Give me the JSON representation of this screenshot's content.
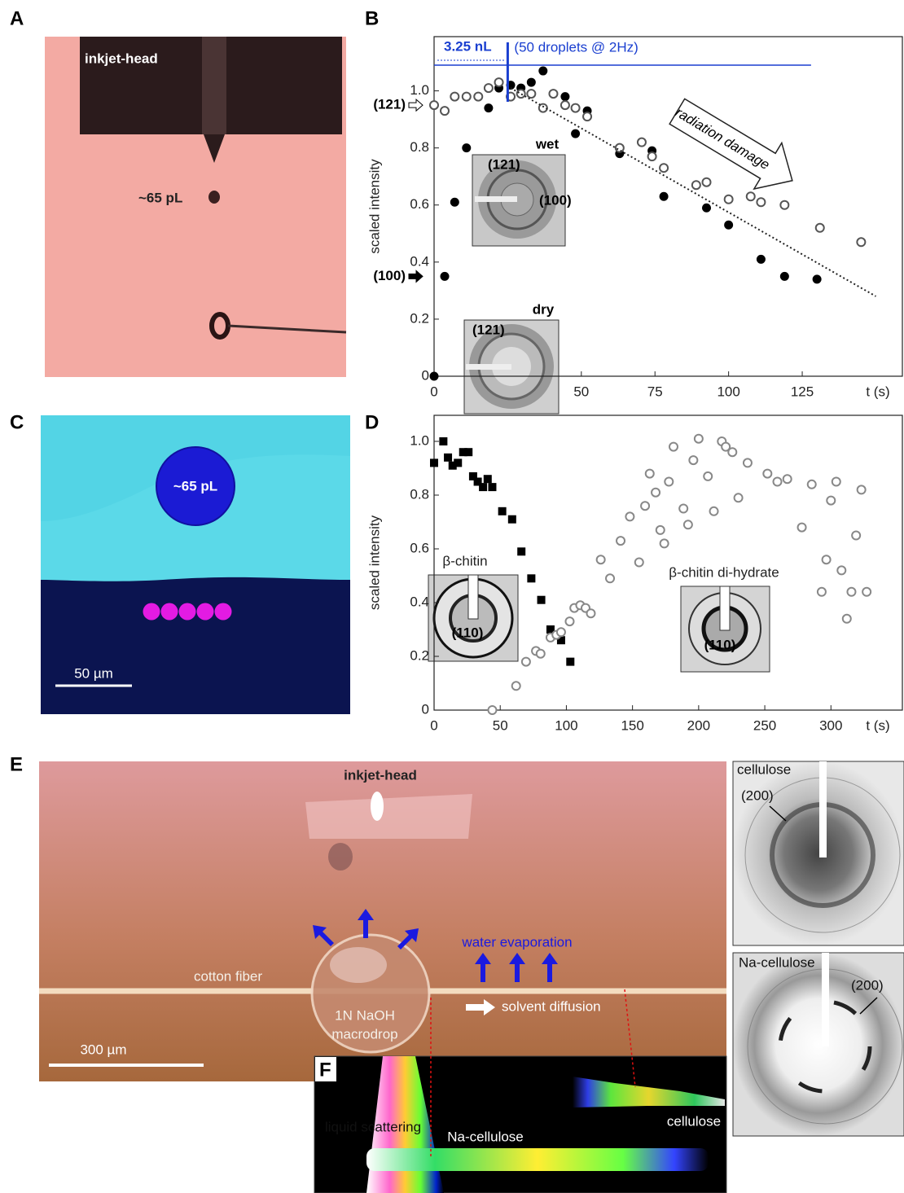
{
  "panel_labels": [
    "A",
    "B",
    "C",
    "D",
    "E",
    "F"
  ],
  "panel_a": {
    "head_label": "inkjet-head",
    "droplet_label": "~65 pL"
  },
  "panel_c": {
    "droplet_label": "~65 pL",
    "scale_bar": "50 µm"
  },
  "chart_data": [
    {
      "type": "scatter",
      "ylabel": "scaled intensity",
      "xlabel": "t (s)",
      "xlim": [
        0,
        159
      ],
      "ylim": [
        0,
        1.19
      ],
      "xticks": [
        0,
        50,
        75,
        100,
        125
      ],
      "yticks": [
        0,
        0.2,
        0.4,
        0.6,
        0.8,
        {
          "value": 1,
          "label": "1.0"
        }
      ],
      "series": [
        {
          "name": "(100)",
          "color": "#000000",
          "marker": "circle",
          "filled": true,
          "x": [
            0,
            3.6,
            7,
            11,
            18.5,
            22,
            26,
            29.5,
            33,
            37,
            44.5,
            52,
            48,
            63,
            74,
            78,
            92.5,
            100,
            111,
            119,
            130
          ],
          "values": [
            0,
            0.35,
            0.61,
            0.8,
            0.94,
            1.01,
            1.02,
            1.01,
            1.03,
            1.07,
            0.98,
            0.93,
            0.85,
            0.78,
            0.79,
            0.63,
            0.59,
            0.53,
            0.41,
            0.35,
            0.34
          ]
        },
        {
          "name": "(121)",
          "color": "#555555",
          "marker": "circle",
          "filled": false,
          "x": [
            0,
            3.6,
            7,
            11,
            15,
            18.5,
            22,
            26,
            29.5,
            33,
            37,
            40.5,
            44.5,
            48,
            52,
            63,
            70.5,
            74,
            78,
            89,
            92.5,
            100,
            107.5,
            111,
            119,
            131,
            145
          ],
          "values": [
            0.95,
            0.93,
            0.98,
            0.98,
            0.98,
            1.01,
            1.03,
            0.98,
            0.99,
            0.99,
            0.94,
            0.99,
            0.95,
            0.94,
            0.91,
            0.8,
            0.82,
            0.77,
            0.73,
            0.67,
            0.68,
            0.62,
            0.63,
            0.61,
            0.6,
            0.52,
            0.47
          ]
        }
      ],
      "trend_line": {
        "x": [
          26,
          150
        ],
        "y": [
          1.01,
          0.28
        ]
      },
      "dose_line": {
        "x": [
          0,
          128
        ],
        "y": 1.09,
        "end_x": 25,
        "color": "#1a3fd0"
      },
      "annotations": {
        "volume": "3.25 nL",
        "droplets": "(50 droplets @ 2Hz)",
        "damage": "radiation damage"
      },
      "insets": [
        {
          "title": "wet",
          "labels": [
            "(121)",
            "(100)"
          ]
        },
        {
          "title": "dry",
          "labels": [
            "(121)"
          ]
        }
      ]
    },
    {
      "type": "scatter",
      "ylabel": "scaled intensity",
      "xlabel": "t (s)",
      "xlim": [
        0,
        354
      ],
      "ylim": [
        0,
        1.097
      ],
      "xticks": [
        0,
        50,
        100,
        150,
        200,
        250,
        300
      ],
      "yticks": [
        0,
        0.2,
        0.4,
        0.6,
        0.8,
        {
          "value": 1,
          "label": "1.0"
        }
      ],
      "series": [
        {
          "name": "β-chitin",
          "color": "#000000",
          "marker": "square",
          "filled": true,
          "x": [
            0,
            7,
            10.5,
            14,
            18,
            22,
            26,
            29.5,
            33,
            37,
            40.5,
            44,
            51.5,
            59,
            66,
            73.5,
            81,
            88,
            92,
            96,
            103
          ],
          "values": [
            0.92,
            1,
            0.94,
            0.91,
            0.92,
            0.96,
            0.96,
            0.87,
            0.85,
            0.83,
            0.86,
            0.83,
            0.74,
            0.71,
            0.59,
            0.49,
            0.41,
            0.3,
            0.28,
            0.26,
            0.18
          ]
        },
        {
          "name": "β-chitin di-hydrate",
          "color": "#888888",
          "marker": "circle",
          "filled": false,
          "x": [
            44,
            62,
            69.5,
            77,
            80.5,
            88,
            92.5,
            96,
            102.5,
            106,
            110.5,
            114.5,
            118.5,
            126,
            133,
            141,
            148,
            155,
            159.5,
            163,
            167.5,
            171,
            174,
            177.5,
            181,
            188.5,
            192,
            196,
            200,
            207,
            211.5,
            217.5,
            220.5,
            225.5,
            230,
            237,
            252,
            259.5,
            267,
            278,
            285.5,
            293,
            296.5,
            300,
            304,
            308,
            312,
            315.5,
            319,
            323,
            327
          ],
          "values": [
            0,
            0.09,
            0.18,
            0.22,
            0.21,
            0.27,
            0.28,
            0.29,
            0.33,
            0.38,
            0.39,
            0.38,
            0.36,
            0.56,
            0.49,
            0.63,
            0.72,
            0.55,
            0.76,
            0.88,
            0.81,
            0.67,
            0.62,
            0.85,
            0.98,
            0.75,
            0.69,
            0.93,
            1.01,
            0.87,
            0.74,
            1,
            0.98,
            0.96,
            0.79,
            0.92,
            0.88,
            0.85,
            0.86,
            0.68,
            0.84,
            0.44,
            0.56,
            0.78,
            0.85,
            0.52,
            0.34,
            0.44,
            0.65,
            0.82,
            0.44
          ]
        }
      ],
      "inset_labels": [
        "(110)",
        "(110)"
      ]
    }
  ],
  "panel_e": {
    "head_label": "inkjet-head",
    "fiber": "cotton fiber",
    "drop_line1": "1N NaOH",
    "drop_line2": "macrodrop",
    "evaporation": "water evaporation",
    "diffusion": "solvent diffusion",
    "scale_bar": "300 µm",
    "pattern_top": {
      "title": "cellulose",
      "peak": "(200)"
    },
    "pattern_bottom": {
      "title": "Na-cellulose",
      "peak": "(200)"
    }
  },
  "panel_f": {
    "liquid": "liquid scattering",
    "na_cellulose": "Na-cellulose",
    "cellulose": "cellulose"
  }
}
